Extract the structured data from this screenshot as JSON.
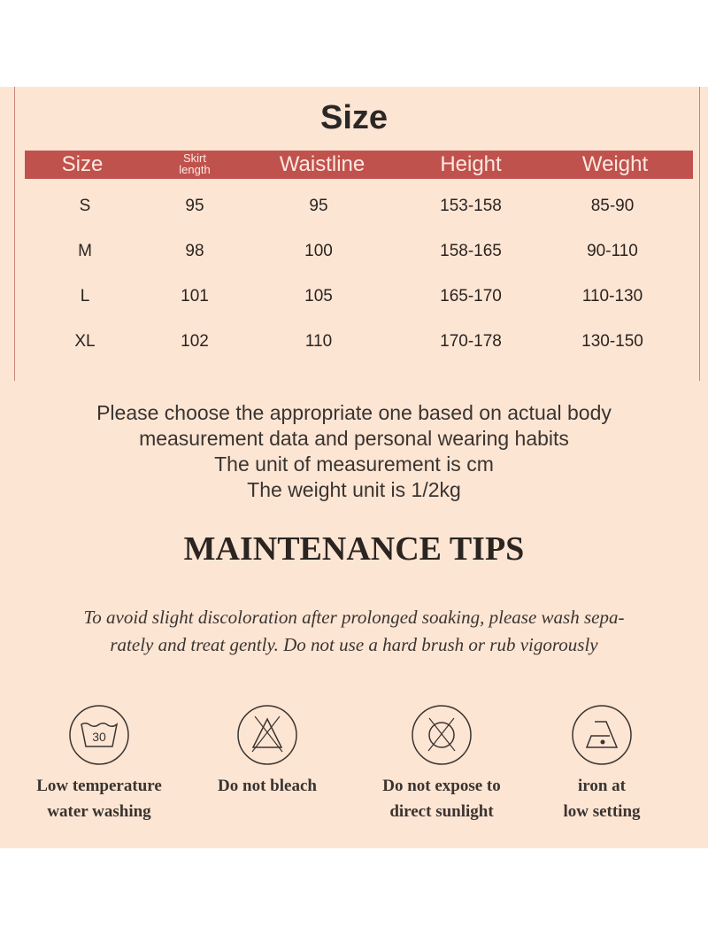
{
  "size_chart": {
    "title": "Size",
    "headers": [
      "Size",
      "Skirt length",
      "Waistline",
      "Height",
      "Weight"
    ],
    "rows": [
      [
        "S",
        "95",
        "95",
        "153-158",
        "85-90"
      ],
      [
        "M",
        "98",
        "100",
        "158-165",
        "90-110"
      ],
      [
        "L",
        "101",
        "105",
        "165-170",
        "110-130"
      ],
      [
        "XL",
        "102",
        "110",
        "170-178",
        "130-150"
      ]
    ],
    "header_color": "#c0524e",
    "background_color": "#fde5d4"
  },
  "notes": [
    "Please choose the appropriate one based on actual body",
    "measurement data and personal wearing habits",
    "The unit of measurement is cm",
    "The weight unit is 1/2kg"
  ],
  "maintenance": {
    "title": "MAINTENANCE TIPS",
    "description": [
      "To avoid slight discoloration after prolonged soaking, please wash sepa-",
      "rately and treat gently. Do not use a hard brush or rub vigorously"
    ],
    "items": [
      {
        "icon": "wash-30-icon",
        "icon_text": "30",
        "label1": "Low temperature",
        "label2": "water washing"
      },
      {
        "icon": "no-bleach-icon",
        "label1": "Do not bleach",
        "label2": ""
      },
      {
        "icon": "no-sunlight-icon",
        "label1": "Do not expose to",
        "label2": "direct sunlight"
      },
      {
        "icon": "iron-low-icon",
        "label1": "iron at",
        "label2": "low setting"
      }
    ]
  }
}
